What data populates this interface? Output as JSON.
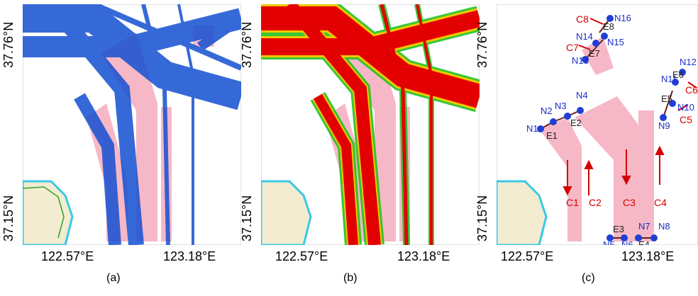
{
  "panels": [
    {
      "lat_top": "37.76°N",
      "lat_bottom": "37.15°N",
      "lon_left": "122.57°E",
      "lon_right": "123.18°E",
      "caption": "(a)"
    },
    {
      "lat_top": "37.76°N",
      "lat_bottom": "37.15°N",
      "lon_left": "122.57°E",
      "lon_right": "123.18°E",
      "caption": "(b)"
    },
    {
      "lat_top": "37.76°N",
      "lat_bottom": "37.15°N",
      "lon_left": "122.57°E",
      "lon_right": "123.18°E",
      "caption": "(c)"
    }
  ],
  "colors": {
    "track_blue": "#1450d2",
    "density_red": "#e30000",
    "density_yellow": "#f0c800",
    "density_green": "#22c322",
    "lane_pink": "#f6b8c6",
    "land_beige": "#f4ecd0",
    "coast_cyan": "#38c8e8",
    "node_blue": "#1f3fd6",
    "flow_red": "#d40000"
  },
  "nodes": [
    "N1",
    "N2",
    "N3",
    "N4",
    "N5",
    "N6",
    "N7",
    "N8",
    "N9",
    "N10",
    "N11",
    "N12",
    "N13",
    "N14",
    "N15",
    "N16"
  ],
  "edges": [
    "E1",
    "E2",
    "E3",
    "E4",
    "E5",
    "E6",
    "E7",
    "E8"
  ],
  "flows": [
    "C1",
    "C2",
    "C3",
    "C4",
    "C5",
    "C6",
    "C7",
    "C8"
  ]
}
